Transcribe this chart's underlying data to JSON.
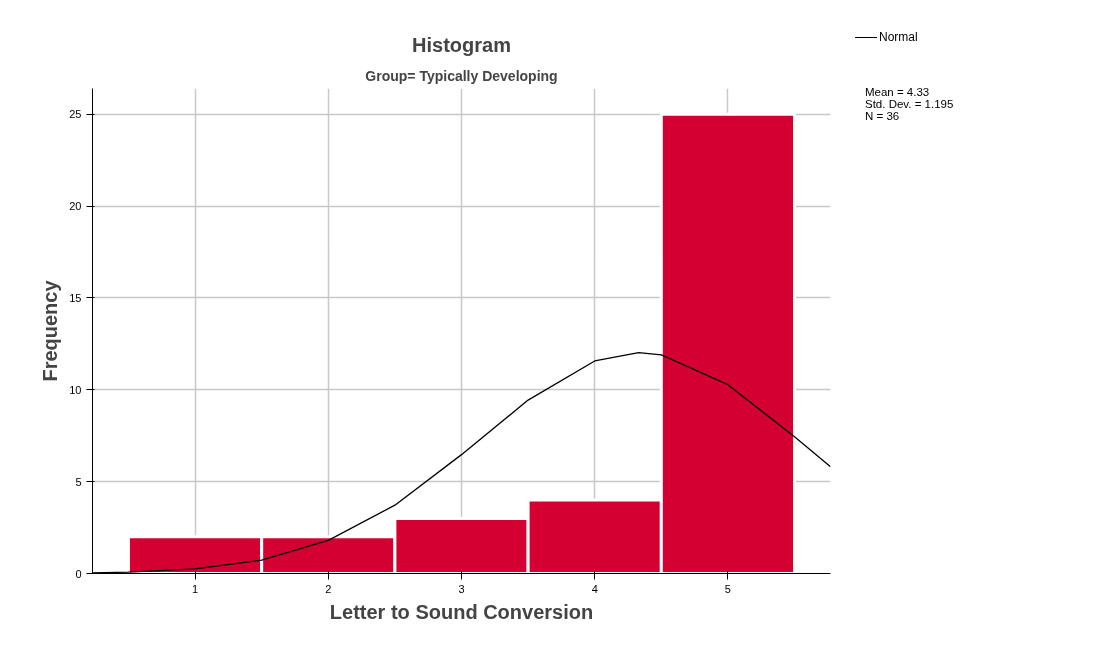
{
  "chart_data": {
    "type": "histogram",
    "title": "Histogram",
    "subtitle": "Group= Typically Developing",
    "xlabel": "Letter to Sound Conversion",
    "ylabel": "Frequency",
    "bins": [
      0.5,
      1.5,
      2.5,
      3.5,
      4.5,
      5.5
    ],
    "series": [
      {
        "color": "#d50032",
        "values": [
          2,
          2,
          3,
          4,
          25
        ]
      },
      {
        "type": "line",
        "name": "Normal",
        "color": "#000000",
        "x": [
          0.23,
          0.5,
          1,
          1.5,
          2,
          2.5,
          3,
          3.5,
          4,
          4.33,
          4.5,
          5,
          5.5,
          5.77
        ],
        "values": [
          0.03,
          0.07,
          0.25,
          0.73,
          1.8,
          3.72,
          6.47,
          9.44,
          11.57,
          12.02,
          11.9,
          10.28,
          7.44,
          5.81
        ]
      }
    ],
    "annotations": [
      "Mean = 4.33",
      "Std. Dev. = 1.195",
      "N = 36"
    ],
    "xlim": [
      0.23,
      5.77
    ],
    "ylim": [
      0,
      26.4
    ],
    "xticks": [
      1,
      2,
      3,
      4,
      5
    ],
    "yticks": [
      0,
      5,
      10,
      15,
      20,
      25
    ],
    "grid": true,
    "legend": "top right",
    "marker": "none",
    "line_style": "solid"
  }
}
